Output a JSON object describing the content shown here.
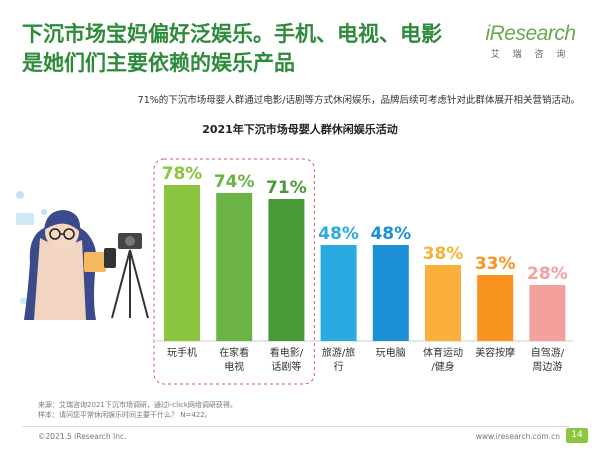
{
  "headline": {
    "line1": "下沉市场宝妈偏好泛娱乐。手机、电视、电影",
    "line2": "是她们们主要依赖的娱乐产品"
  },
  "brand": {
    "logo": "iResearch",
    "cn": "艾 瑞 咨 询"
  },
  "subtitle": "71%的下沉市场母婴人群通过电影/话剧等方式休闲娱乐，品牌后续可考虑针对此群体展开相关营销活动。",
  "chart_data": {
    "type": "bar",
    "title": "2021年下沉市场母婴人群休闲娱乐活动",
    "categories": [
      "玩手机",
      "在家看\n电视",
      "看电影/\n话剧等",
      "旅游/旅\n行",
      "玩电脑",
      "体育运动\n/健身",
      "美容按摩",
      "自驾游/\n周边游"
    ],
    "values": [
      78,
      74,
      71,
      48,
      48,
      38,
      33,
      28
    ],
    "value_labels": [
      "78%",
      "74%",
      "71%",
      "48%",
      "48%",
      "38%",
      "33%",
      "28%"
    ],
    "colors": [
      "#8cc63f",
      "#6ab344",
      "#4a9a3a",
      "#29abe2",
      "#1c8fd6",
      "#fbb03b",
      "#f7931e",
      "#f4a09c"
    ],
    "label_colors": [
      "#8cc63f",
      "#6ab344",
      "#4a9a3a",
      "#29abe2",
      "#1c8fd6",
      "#fbb03b",
      "#f7931e",
      "#f4a09c"
    ],
    "highlighted": [
      0,
      1,
      2
    ],
    "ylim": [
      0,
      100
    ],
    "grid": false
  },
  "footer": {
    "source_line1": "来源：艾瑞咨询2021下沉市场调研，通过i-click网络调研获得。",
    "source_line2": "样本：请问您平常休闲娱乐时间主要干什么？ N=422。",
    "copyright": "©2021.5 iResearch Inc.",
    "site": "www.iresearch.com.cn",
    "page": "14"
  }
}
